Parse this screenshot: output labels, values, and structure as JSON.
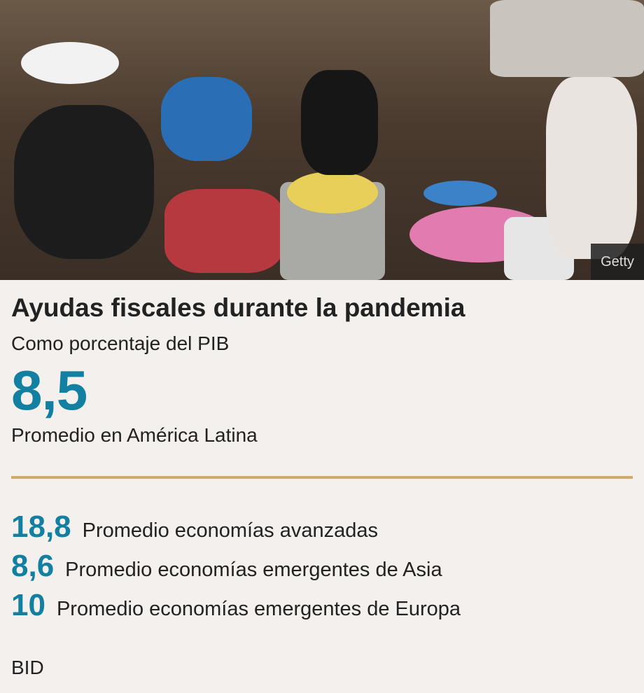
{
  "photo": {
    "credit": "Getty"
  },
  "title": "Ayudas fiscales durante la pandemia",
  "subtitle": "Como porcentaje del PIB",
  "headline_stat": {
    "value": "8,5",
    "label": "Promedio en América Latina"
  },
  "stats": [
    {
      "value": "18,8",
      "label": "Promedio economías avanzadas"
    },
    {
      "value": "8,6",
      "label": "Promedio economías emergentes de Asia"
    },
    {
      "value": "10",
      "label": "Promedio economías emergentes de Europa"
    }
  ],
  "source": "BID",
  "colors": {
    "accent": "#1380a1",
    "rule": "#cfab72",
    "background": "#f3f0ed"
  }
}
